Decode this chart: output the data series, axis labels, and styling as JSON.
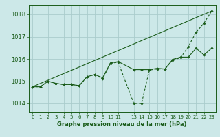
{
  "background_color": "#cce8e8",
  "grid_color": "#aacccc",
  "line_color": "#1a5c1a",
  "title": "Graphe pression niveau de la mer (hPa)",
  "xlim": [
    -0.5,
    23.5
  ],
  "ylim": [
    1013.6,
    1018.4
  ],
  "yticks": [
    1014,
    1015,
    1016,
    1017,
    1018
  ],
  "xticks": [
    0,
    1,
    2,
    3,
    4,
    5,
    6,
    7,
    8,
    9,
    10,
    11,
    13,
    14,
    15,
    16,
    17,
    18,
    19,
    20,
    21,
    22,
    23
  ],
  "series1_x": [
    0,
    1,
    2,
    3,
    4,
    5,
    6,
    7,
    8,
    9,
    10,
    11,
    13,
    14,
    15,
    16,
    17,
    18,
    19,
    20,
    21,
    22,
    23
  ],
  "series1_y": [
    1014.75,
    1014.75,
    1015.0,
    1014.9,
    1014.85,
    1014.85,
    1014.8,
    1015.2,
    1015.3,
    1015.1,
    1015.8,
    1015.85,
    1014.0,
    1014.0,
    1015.5,
    1015.55,
    1015.55,
    1015.95,
    1016.05,
    1016.55,
    1017.2,
    1017.6,
    1018.15
  ],
  "series2_x": [
    0,
    1,
    2,
    3,
    4,
    5,
    6,
    7,
    8,
    9,
    10,
    11,
    13,
    14,
    15,
    16,
    17,
    18,
    19,
    20,
    21,
    22,
    23
  ],
  "series2_y": [
    1014.75,
    1014.75,
    1015.0,
    1014.9,
    1014.85,
    1014.85,
    1014.8,
    1015.2,
    1015.3,
    1015.15,
    1015.82,
    1015.88,
    1015.52,
    1015.52,
    1015.52,
    1015.58,
    1015.55,
    1015.98,
    1016.08,
    1016.08,
    1016.48,
    1016.18,
    1016.48
  ],
  "series3_x": [
    0,
    23
  ],
  "series3_y": [
    1014.75,
    1018.15
  ]
}
